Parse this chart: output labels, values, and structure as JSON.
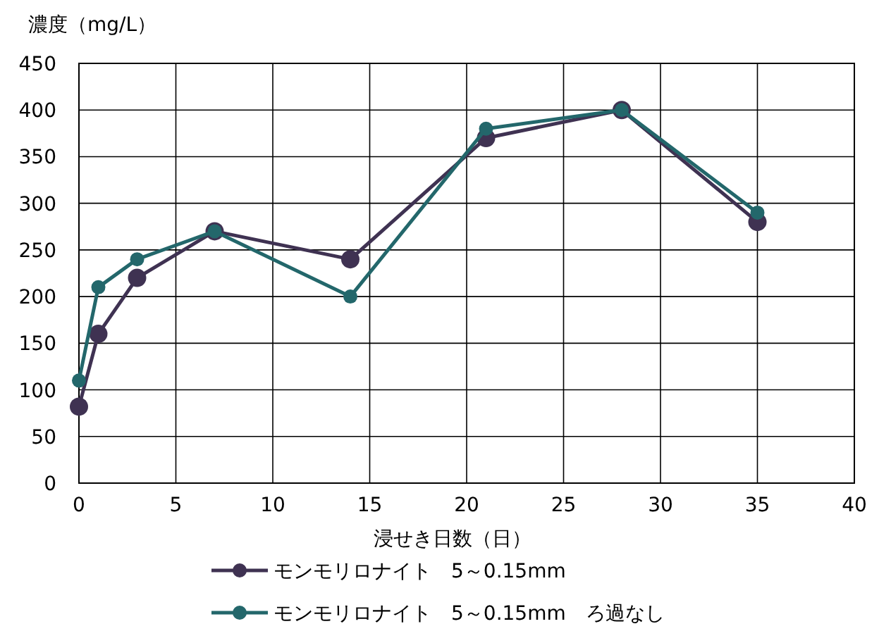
{
  "chart_data": {
    "type": "line",
    "ylabel": "濃度（mg/L）",
    "xlabel": "浸せき日数（日）",
    "x": [
      0,
      1,
      3,
      7,
      14,
      21,
      28,
      35
    ],
    "series": [
      {
        "name": "モンモリロナイト　5～0.15mm",
        "color": "#3f3252",
        "values": [
          82,
          160,
          220,
          270,
          240,
          370,
          400,
          280
        ]
      },
      {
        "name": "モンモリロナイト　5～0.15mm　ろ過なし",
        "color": "#23676b",
        "values": [
          110,
          210,
          240,
          270,
          200,
          380,
          400,
          290
        ]
      }
    ],
    "xlim": [
      0,
      40
    ],
    "xticks": [
      0,
      5,
      10,
      15,
      20,
      25,
      30,
      35,
      40
    ],
    "ylim": [
      0,
      450
    ],
    "yticks": [
      0,
      50,
      100,
      150,
      200,
      250,
      300,
      350,
      400,
      450
    ],
    "grid": true,
    "legend": "bottom",
    "marker": "circle",
    "line_style": "solid"
  }
}
